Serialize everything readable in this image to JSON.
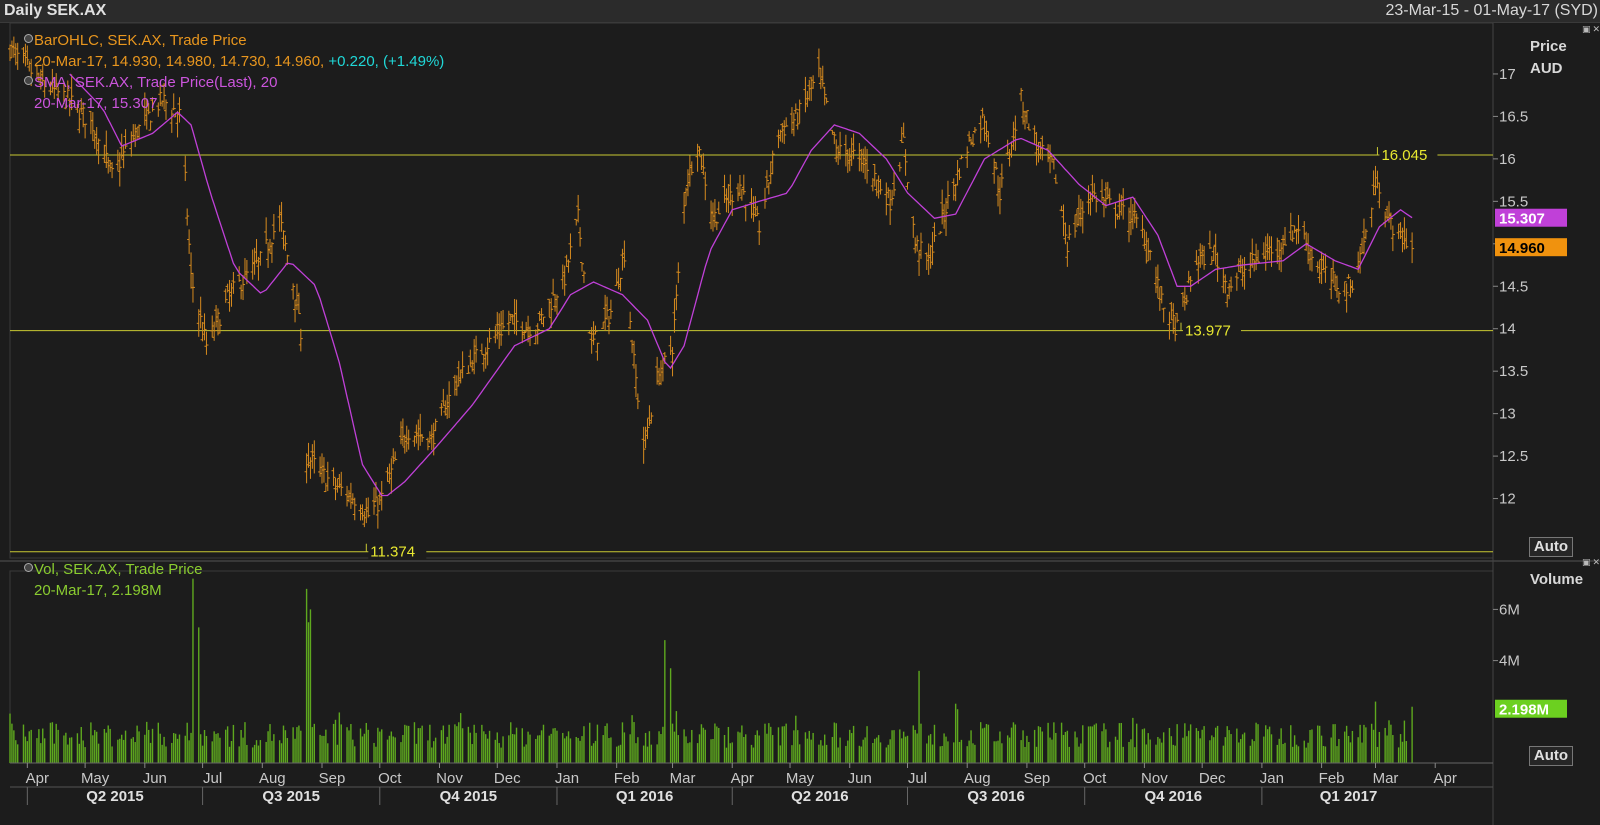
{
  "window": {
    "title": "Daily SEK.AX",
    "date_range": "23-Mar-15 - 01-May-17 (SYD)"
  },
  "price_panel": {
    "axis_title": "Price",
    "axis_unit": "AUD",
    "auto_label": "Auto",
    "legend_bar_line1": "BarOHLC, SEK.AX, Trade Price",
    "legend_bar_line2": "20-Mar-17, 14.930, 14.980, 14.730, 14.960,",
    "legend_bar_change": "+0.220, (+1.49%)",
    "legend_sma_line1": "SMA, SEK.AX, Trade Price(Last),  20",
    "legend_sma_line2": "20-Mar-17, 15.307",
    "sma_tag": "15.307",
    "last_tag": "14.960"
  },
  "volume_panel": {
    "axis_title": "Volume",
    "auto_label": "Auto",
    "legend_line1": "Vol, SEK.AX, Trade Price",
    "legend_line2": "20-Mar-17, 2.198M",
    "last_tag": "2.198M"
  },
  "colors": {
    "background": "#1c1c1c",
    "bars": "#d68a1e",
    "sma": "#c040d8",
    "volume": "#5ea81e",
    "hlines": "#c8c832",
    "change": "#20d8d8",
    "sma_legend": "#cc55dd",
    "vol_legend": "#8acc30"
  },
  "chart_data": [
    {
      "type": "bar-ohlc",
      "ylim": [
        11.3,
        17.6
      ],
      "y_ticks": [
        "17",
        "16.5",
        "16",
        "15.5",
        "15",
        "14.5",
        "14",
        "13.5",
        "13",
        "12.5",
        "12"
      ],
      "horizontal_lines": [
        {
          "value": 16.045,
          "label": "16.045"
        },
        {
          "value": 13.977,
          "label": "13.977"
        },
        {
          "value": 11.374,
          "label": "11.374"
        }
      ],
      "anchors_close": [
        [
          "2015-03-23",
          17.3
        ],
        [
          "2015-04-08",
          16.9
        ],
        [
          "2015-04-22",
          16.7
        ],
        [
          "2015-05-05",
          16.4
        ],
        [
          "2015-05-15",
          15.8
        ],
        [
          "2015-05-27",
          16.3
        ],
        [
          "2015-06-10",
          16.7
        ],
        [
          "2015-06-20",
          16.5
        ],
        [
          "2015-06-25",
          14.6
        ],
        [
          "2015-07-03",
          13.8
        ],
        [
          "2015-07-15",
          14.4
        ],
        [
          "2015-07-31",
          14.8
        ],
        [
          "2015-08-10",
          15.3
        ],
        [
          "2015-08-20",
          14.2
        ],
        [
          "2015-08-24",
          12.5
        ],
        [
          "2015-09-05",
          12.2
        ],
        [
          "2015-09-18",
          12.0
        ],
        [
          "2015-09-25",
          11.8
        ],
        [
          "2015-10-02",
          12.0
        ],
        [
          "2015-10-15",
          12.8
        ],
        [
          "2015-10-28",
          12.7
        ],
        [
          "2015-11-10",
          13.4
        ],
        [
          "2015-11-25",
          13.8
        ],
        [
          "2015-12-08",
          14.1
        ],
        [
          "2015-12-21",
          14.0
        ],
        [
          "2016-01-05",
          14.6
        ],
        [
          "2016-01-12",
          15.3
        ],
        [
          "2016-01-19",
          13.8
        ],
        [
          "2016-01-29",
          14.2
        ],
        [
          "2016-02-05",
          14.9
        ],
        [
          "2016-02-10",
          13.6
        ],
        [
          "2016-02-15",
          12.6
        ],
        [
          "2016-02-22",
          13.4
        ],
        [
          "2016-03-01",
          13.8
        ],
        [
          "2016-03-08",
          15.7
        ],
        [
          "2016-03-14",
          16.2
        ],
        [
          "2016-03-22",
          15.3
        ],
        [
          "2016-04-05",
          15.7
        ],
        [
          "2016-04-15",
          15.2
        ],
        [
          "2016-04-25",
          16.3
        ],
        [
          "2016-05-05",
          16.5
        ],
        [
          "2016-05-16",
          17.0
        ],
        [
          "2016-05-25",
          16.1
        ],
        [
          "2016-06-08",
          16.0
        ],
        [
          "2016-06-22",
          15.5
        ],
        [
          "2016-06-29",
          16.2
        ],
        [
          "2016-07-05",
          15.0
        ],
        [
          "2016-07-12",
          14.8
        ],
        [
          "2016-07-22",
          15.5
        ],
        [
          "2016-08-02",
          16.2
        ],
        [
          "2016-08-10",
          16.5
        ],
        [
          "2016-08-18",
          15.6
        ],
        [
          "2016-08-29",
          16.7
        ],
        [
          "2016-09-07",
          16.1
        ],
        [
          "2016-09-15",
          15.9
        ],
        [
          "2016-09-22",
          15.0
        ],
        [
          "2016-10-04",
          15.6
        ],
        [
          "2016-10-18",
          15.4
        ],
        [
          "2016-10-27",
          15.3
        ],
        [
          "2016-11-03",
          15.0
        ],
        [
          "2016-11-10",
          14.3
        ],
        [
          "2016-11-18",
          14.0
        ],
        [
          "2016-11-28",
          14.8
        ],
        [
          "2016-12-07",
          14.9
        ],
        [
          "2016-12-14",
          14.5
        ],
        [
          "2016-12-28",
          14.8
        ],
        [
          "2017-01-10",
          15.0
        ],
        [
          "2017-01-20",
          15.2
        ],
        [
          "2017-01-31",
          14.7
        ],
        [
          "2017-02-10",
          14.5
        ],
        [
          "2017-02-16",
          14.5
        ],
        [
          "2017-02-23",
          15.0
        ],
        [
          "2017-03-02",
          15.8
        ],
        [
          "2017-03-07",
          15.3
        ],
        [
          "2017-03-14",
          15.1
        ],
        [
          "2017-03-20",
          14.96
        ]
      ],
      "sma_anchors": [
        [
          "2015-04-23",
          17.0
        ],
        [
          "2015-05-10",
          16.6
        ],
        [
          "2015-05-20",
          16.15
        ],
        [
          "2015-06-05",
          16.3
        ],
        [
          "2015-06-18",
          16.55
        ],
        [
          "2015-06-25",
          16.4
        ],
        [
          "2015-07-05",
          15.6
        ],
        [
          "2015-07-18",
          14.7
        ],
        [
          "2015-08-01",
          14.4
        ],
        [
          "2015-08-15",
          14.8
        ],
        [
          "2015-08-29",
          14.5
        ],
        [
          "2015-09-10",
          13.6
        ],
        [
          "2015-09-22",
          12.4
        ],
        [
          "2015-10-03",
          12.0
        ],
        [
          "2015-10-14",
          12.2
        ],
        [
          "2015-10-30",
          12.6
        ],
        [
          "2015-11-18",
          13.1
        ],
        [
          "2015-12-10",
          13.8
        ],
        [
          "2015-12-28",
          14.0
        ],
        [
          "2016-01-08",
          14.4
        ],
        [
          "2016-01-20",
          14.55
        ],
        [
          "2016-02-04",
          14.4
        ],
        [
          "2016-02-17",
          14.1
        ],
        [
          "2016-02-28",
          13.5
        ],
        [
          "2016-03-07",
          13.8
        ],
        [
          "2016-03-20",
          14.9
        ],
        [
          "2016-04-01",
          15.4
        ],
        [
          "2016-04-15",
          15.5
        ],
        [
          "2016-04-30",
          15.6
        ],
        [
          "2016-05-12",
          16.1
        ],
        [
          "2016-05-24",
          16.4
        ],
        [
          "2016-06-06",
          16.3
        ],
        [
          "2016-06-20",
          16.0
        ],
        [
          "2016-07-01",
          15.6
        ],
        [
          "2016-07-15",
          15.3
        ],
        [
          "2016-07-26",
          15.35
        ],
        [
          "2016-08-10",
          16.0
        ],
        [
          "2016-08-28",
          16.25
        ],
        [
          "2016-09-12",
          16.1
        ],
        [
          "2016-09-28",
          15.7
        ],
        [
          "2016-10-12",
          15.45
        ],
        [
          "2016-10-26",
          15.55
        ],
        [
          "2016-11-08",
          15.1
        ],
        [
          "2016-11-18",
          14.5
        ],
        [
          "2016-11-25",
          14.5
        ],
        [
          "2016-12-08",
          14.7
        ],
        [
          "2016-12-22",
          14.75
        ],
        [
          "2017-01-12",
          14.8
        ],
        [
          "2017-01-24",
          15.0
        ],
        [
          "2017-02-08",
          14.8
        ],
        [
          "2017-02-20",
          14.7
        ],
        [
          "2017-03-03",
          15.2
        ],
        [
          "2017-03-14",
          15.4
        ],
        [
          "2017-03-20",
          15.307
        ]
      ]
    },
    {
      "type": "bar",
      "name": "Volume",
      "ylim": [
        0,
        7500000
      ],
      "y_ticks": [
        "6M",
        "4M"
      ],
      "spikes": [
        [
          "2015-06-26",
          7200000
        ],
        [
          "2015-06-29",
          5300000
        ],
        [
          "2015-08-24",
          6800000
        ],
        [
          "2015-08-25",
          5500000
        ],
        [
          "2015-08-26",
          6000000
        ],
        [
          "2016-02-26",
          4800000
        ],
        [
          "2016-02-29",
          3700000
        ],
        [
          "2016-07-07",
          3600000
        ],
        [
          "2017-03-01",
          2400000
        ],
        [
          "2017-03-20",
          2198000
        ]
      ],
      "typical_range": [
        600000,
        1600000
      ]
    }
  ],
  "x_axis": {
    "months": [
      [
        "Apr",
        "2015-04-01"
      ],
      [
        "May",
        "2015-05-01"
      ],
      [
        "Jun",
        "2015-06-01"
      ],
      [
        "Jul",
        "2015-07-01"
      ],
      [
        "Aug",
        "2015-08-01"
      ],
      [
        "Sep",
        "2015-09-01"
      ],
      [
        "Oct",
        "2015-10-01"
      ],
      [
        "Nov",
        "2015-11-01"
      ],
      [
        "Dec",
        "2015-12-01"
      ],
      [
        "Jan",
        "2016-01-01"
      ],
      [
        "Feb",
        "2016-02-01"
      ],
      [
        "Mar",
        "2016-03-01"
      ],
      [
        "Apr",
        "2016-04-01"
      ],
      [
        "May",
        "2016-05-01"
      ],
      [
        "Jun",
        "2016-06-01"
      ],
      [
        "Jul",
        "2016-07-01"
      ],
      [
        "Aug",
        "2016-08-01"
      ],
      [
        "Sep",
        "2016-09-01"
      ],
      [
        "Oct",
        "2016-10-01"
      ],
      [
        "Nov",
        "2016-11-01"
      ],
      [
        "Dec",
        "2016-12-01"
      ],
      [
        "Jan",
        "2017-01-01"
      ],
      [
        "Feb",
        "2017-02-01"
      ],
      [
        "Mar",
        "2017-03-01"
      ],
      [
        "Apr",
        "2017-04-01"
      ]
    ],
    "quarters": [
      [
        "Q2 2015",
        "2015-04-01",
        "2015-07-01"
      ],
      [
        "Q3 2015",
        "2015-07-01",
        "2015-10-01"
      ],
      [
        "Q4 2015",
        "2015-10-01",
        "2016-01-01"
      ],
      [
        "Q1 2016",
        "2016-01-01",
        "2016-04-01"
      ],
      [
        "Q2 2016",
        "2016-04-01",
        "2016-07-01"
      ],
      [
        "Q3 2016",
        "2016-07-01",
        "2016-10-01"
      ],
      [
        "Q4 2016",
        "2016-10-01",
        "2017-01-01"
      ],
      [
        "Q1 2017",
        "2017-01-01",
        "2017-04-01"
      ]
    ]
  }
}
